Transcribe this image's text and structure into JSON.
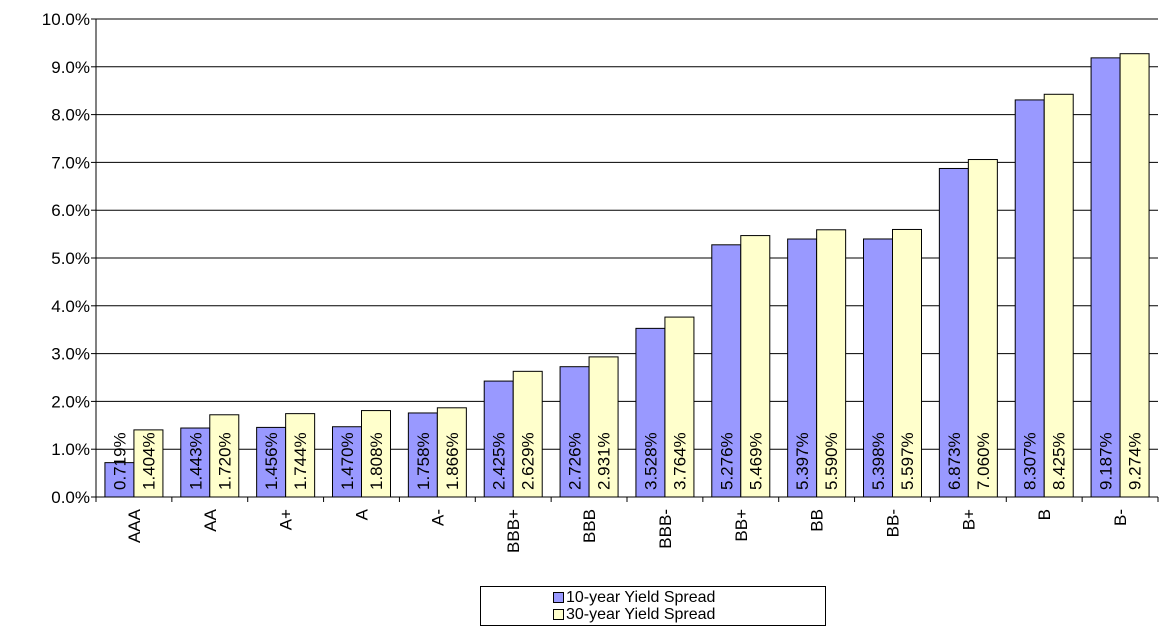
{
  "chart_data": {
    "type": "bar",
    "categories": [
      "AAA",
      "AA",
      "A+",
      "A",
      "A-",
      "BBB+",
      "BBB",
      "BBB-",
      "BB+",
      "BB",
      "BB-",
      "B+",
      "B",
      "B-"
    ],
    "series": [
      {
        "name": "10-year Yield Spread",
        "color": "#9999ff",
        "values": [
          0.719,
          1.443,
          1.456,
          1.47,
          1.758,
          2.425,
          2.726,
          3.528,
          5.276,
          5.397,
          5.398,
          6.873,
          8.307,
          9.187
        ],
        "labels": [
          "0.719%",
          "1.443%",
          "1.456%",
          "1.470%",
          "1.758%",
          "2.425%",
          "2.726%",
          "3.528%",
          "5.276%",
          "5.397%",
          "5.398%",
          "6.873%",
          "8.307%",
          "9.187%"
        ]
      },
      {
        "name": "30-year Yield Spread",
        "color": "#ffffcc",
        "values": [
          1.404,
          1.72,
          1.744,
          1.808,
          1.866,
          2.629,
          2.931,
          3.764,
          5.469,
          5.59,
          5.597,
          7.06,
          8.425,
          9.274
        ],
        "labels": [
          "1.404%",
          "1.720%",
          "1.744%",
          "1.808%",
          "1.866%",
          "2.629%",
          "2.931%",
          "3.764%",
          "5.469%",
          "5.590%",
          "5.597%",
          "7.060%",
          "8.425%",
          "9.274%"
        ]
      }
    ],
    "ylim": [
      0,
      10
    ],
    "yticks": [
      "0.0%",
      "1.0%",
      "2.0%",
      "3.0%",
      "4.0%",
      "5.0%",
      "6.0%",
      "7.0%",
      "8.0%",
      "9.0%",
      "10.0%"
    ],
    "grid": true,
    "legend_position": "bottom",
    "title": "",
    "xlabel": "",
    "ylabel": ""
  }
}
